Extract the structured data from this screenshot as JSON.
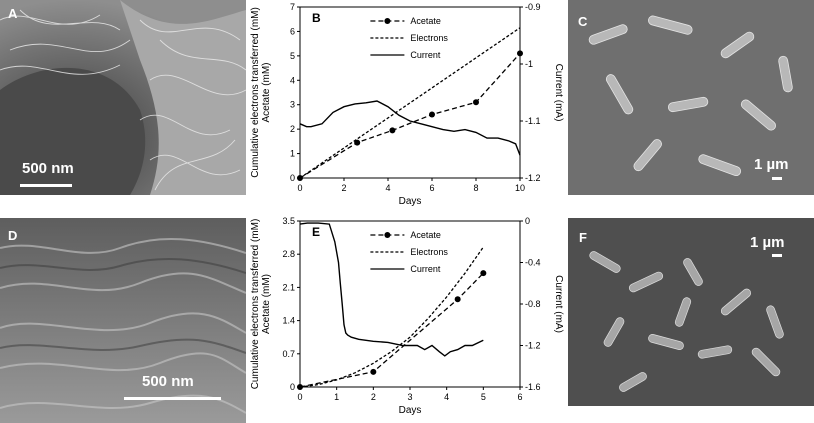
{
  "panels": {
    "A": {
      "letter": "A",
      "scale": "500 nm"
    },
    "C": {
      "letter": "C",
      "scale": "1 µm"
    },
    "D": {
      "letter": "D",
      "scale": "500 nm"
    },
    "F": {
      "letter": "F",
      "scale": "1 µm"
    }
  },
  "chart_data": [
    {
      "panel": "B",
      "type": "line",
      "xlabel": "Days",
      "ylabel": "Cumulative electrons transferred (mM) / Acetate (mM)",
      "y2label": "Current (mA)",
      "xlim": [
        0,
        10
      ],
      "ylim": [
        0,
        7
      ],
      "y2lim": [
        -1.2,
        -0.9
      ],
      "xticks": [
        "0",
        "2",
        "4",
        "6",
        "8",
        "10"
      ],
      "yticks": [
        "0",
        "1",
        "2",
        "3",
        "4",
        "5",
        "6",
        "7"
      ],
      "y2ticks": [
        "-0.9",
        "-1",
        "-1.1",
        "-1.2"
      ],
      "legend_placement": "top-center",
      "series": [
        {
          "name": "Acetate",
          "style": "dashed-markers",
          "axis": "left",
          "x": [
            0,
            2.6,
            4.2,
            6.0,
            8.0,
            10.0
          ],
          "y": [
            0,
            1.45,
            1.95,
            2.6,
            3.1,
            5.1
          ]
        },
        {
          "name": "Electrons",
          "style": "short-dashed",
          "axis": "left",
          "x": [
            0,
            10
          ],
          "y": [
            0,
            6.15
          ]
        },
        {
          "name": "Current",
          "style": "solid",
          "axis": "right",
          "x": [
            0,
            0.3,
            0.5,
            1.0,
            1.5,
            2.0,
            2.5,
            3.0,
            3.5,
            4.0,
            4.5,
            5.0,
            5.5,
            6.0,
            6.5,
            7.0,
            7.5,
            8.0,
            8.5,
            9.0,
            9.5,
            9.8,
            10.0
          ],
          "y": [
            -1.105,
            -1.11,
            -1.11,
            -1.105,
            -1.085,
            -1.075,
            -1.07,
            -1.068,
            -1.065,
            -1.075,
            -1.09,
            -1.1,
            -1.105,
            -1.11,
            -1.115,
            -1.118,
            -1.115,
            -1.12,
            -1.13,
            -1.13,
            -1.135,
            -1.14,
            -1.16
          ]
        }
      ]
    },
    {
      "panel": "E",
      "type": "line",
      "xlabel": "Days",
      "ylabel": "Cumulative electrons transferred (mM) / Acetate (mM)",
      "y2label": "Current (mA)",
      "xlim": [
        0,
        6
      ],
      "ylim": [
        0,
        3.5
      ],
      "y2lim": [
        -1.6,
        0
      ],
      "xticks": [
        "0",
        "1",
        "2",
        "3",
        "4",
        "5",
        "6"
      ],
      "yticks": [
        "0",
        "0.7",
        "1.4",
        "2.1",
        "2.8",
        "3.5"
      ],
      "y2ticks": [
        "0",
        "-0.4",
        "-0.8",
        "-1.2",
        "-1.6"
      ],
      "legend_placement": "top-center",
      "series": [
        {
          "name": "Acetate",
          "style": "dashed-markers",
          "axis": "left",
          "x": [
            0,
            2.0,
            4.3,
            5.0
          ],
          "y": [
            0,
            0.32,
            1.85,
            2.4
          ]
        },
        {
          "name": "Electrons",
          "style": "short-dashed",
          "axis": "left",
          "x": [
            0,
            0.5,
            1.0,
            1.5,
            2.0,
            2.5,
            3.0,
            3.5,
            4.0,
            4.5,
            5.0
          ],
          "y": [
            0,
            0.05,
            0.15,
            0.3,
            0.5,
            0.75,
            1.05,
            1.45,
            1.9,
            2.4,
            2.95
          ]
        },
        {
          "name": "Current",
          "style": "solid",
          "axis": "right",
          "x": [
            0,
            0.2,
            0.5,
            0.8,
            0.95,
            1.05,
            1.1,
            1.15,
            1.2,
            1.25,
            1.3,
            1.4,
            1.6,
            2.0,
            2.4,
            2.8,
            3.2,
            3.4,
            3.6,
            3.8,
            3.95,
            4.1,
            4.3,
            4.5,
            4.7,
            5.0
          ],
          "y": [
            -0.03,
            -0.02,
            -0.02,
            -0.03,
            -0.2,
            -0.4,
            -0.6,
            -0.8,
            -1.0,
            -1.08,
            -1.1,
            -1.12,
            -1.14,
            -1.16,
            -1.17,
            -1.2,
            -1.2,
            -1.24,
            -1.2,
            -1.26,
            -1.3,
            -1.26,
            -1.24,
            -1.2,
            -1.2,
            -1.15
          ]
        }
      ]
    }
  ]
}
